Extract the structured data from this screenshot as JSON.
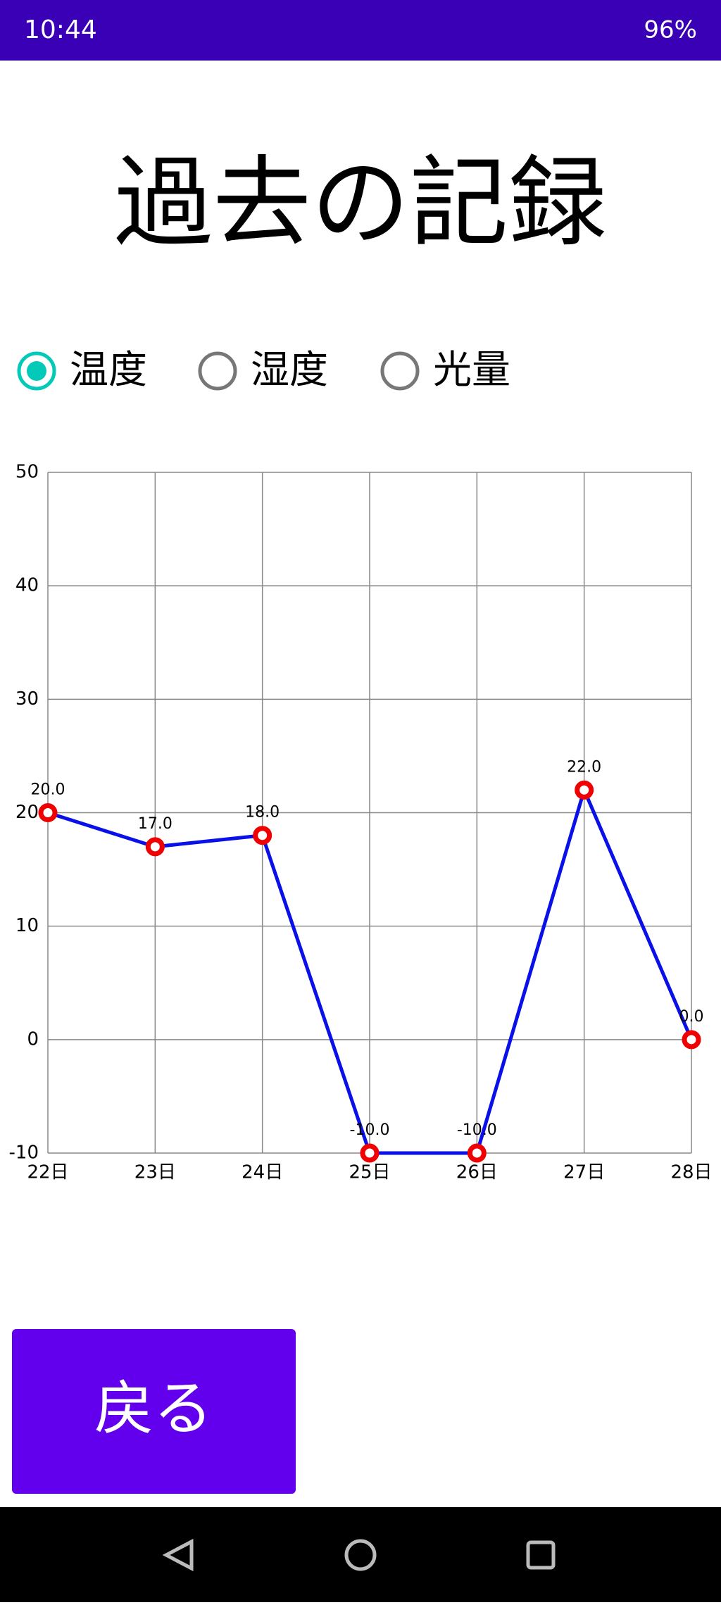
{
  "status_bar": {
    "time": "10:44",
    "battery": "96%"
  },
  "header": {
    "title": "過去の記録"
  },
  "options": [
    {
      "label": "温度",
      "selected": true
    },
    {
      "label": "湿度",
      "selected": false
    },
    {
      "label": "光量",
      "selected": false
    }
  ],
  "chart_data": {
    "type": "line",
    "categories": [
      "22日",
      "23日",
      "24日",
      "25日",
      "26日",
      "27日",
      "28日"
    ],
    "values": [
      20,
      17,
      18,
      -10,
      -10,
      22,
      0
    ],
    "value_labels": [
      "20.0",
      "17.0",
      "18.0",
      "-10.0",
      "-10.0",
      "22.0",
      "0.0"
    ],
    "color": "#0a10e8",
    "marker_color": "#f00000",
    "ylim": [
      -10,
      50
    ],
    "yticks": [
      -10,
      0,
      10,
      20,
      30,
      40,
      50
    ],
    "grid": true
  },
  "button": {
    "label": "戻る"
  }
}
